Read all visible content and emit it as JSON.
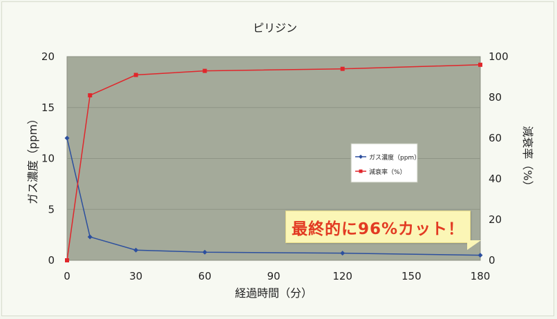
{
  "chart_data": {
    "type": "line",
    "title": "ピリジン",
    "xlabel": "経過時間（分）",
    "ylabel_left": "ガス濃度（ppm）",
    "ylabel_right": "減衰率（%）",
    "x_ticks": [
      "0",
      "30",
      "60",
      "90",
      "120",
      "150",
      "180"
    ],
    "y_left_ticks": [
      "0",
      "5",
      "10",
      "15",
      "20"
    ],
    "y_right_ticks": [
      "0",
      "20",
      "40",
      "60",
      "80",
      "100"
    ],
    "xlim": [
      0,
      180
    ],
    "ylim_left": [
      0,
      20
    ],
    "ylim_right": [
      0,
      100
    ],
    "legend_position": "right",
    "series": [
      {
        "name": "ガス濃度（ppm）",
        "axis": "left",
        "color": "#2c4f9e",
        "marker": "diamond",
        "x": [
          0,
          10,
          30,
          60,
          120,
          180
        ],
        "values": [
          12.0,
          2.3,
          1.0,
          0.8,
          0.7,
          0.5
        ]
      },
      {
        "name": "減衰率（%）",
        "axis": "right",
        "color": "#e0262b",
        "marker": "square",
        "x": [
          0,
          10,
          30,
          60,
          120,
          180
        ],
        "values": [
          0,
          81,
          91,
          93,
          94,
          96
        ]
      }
    ],
    "annotation": "最終的に96%カット！"
  }
}
